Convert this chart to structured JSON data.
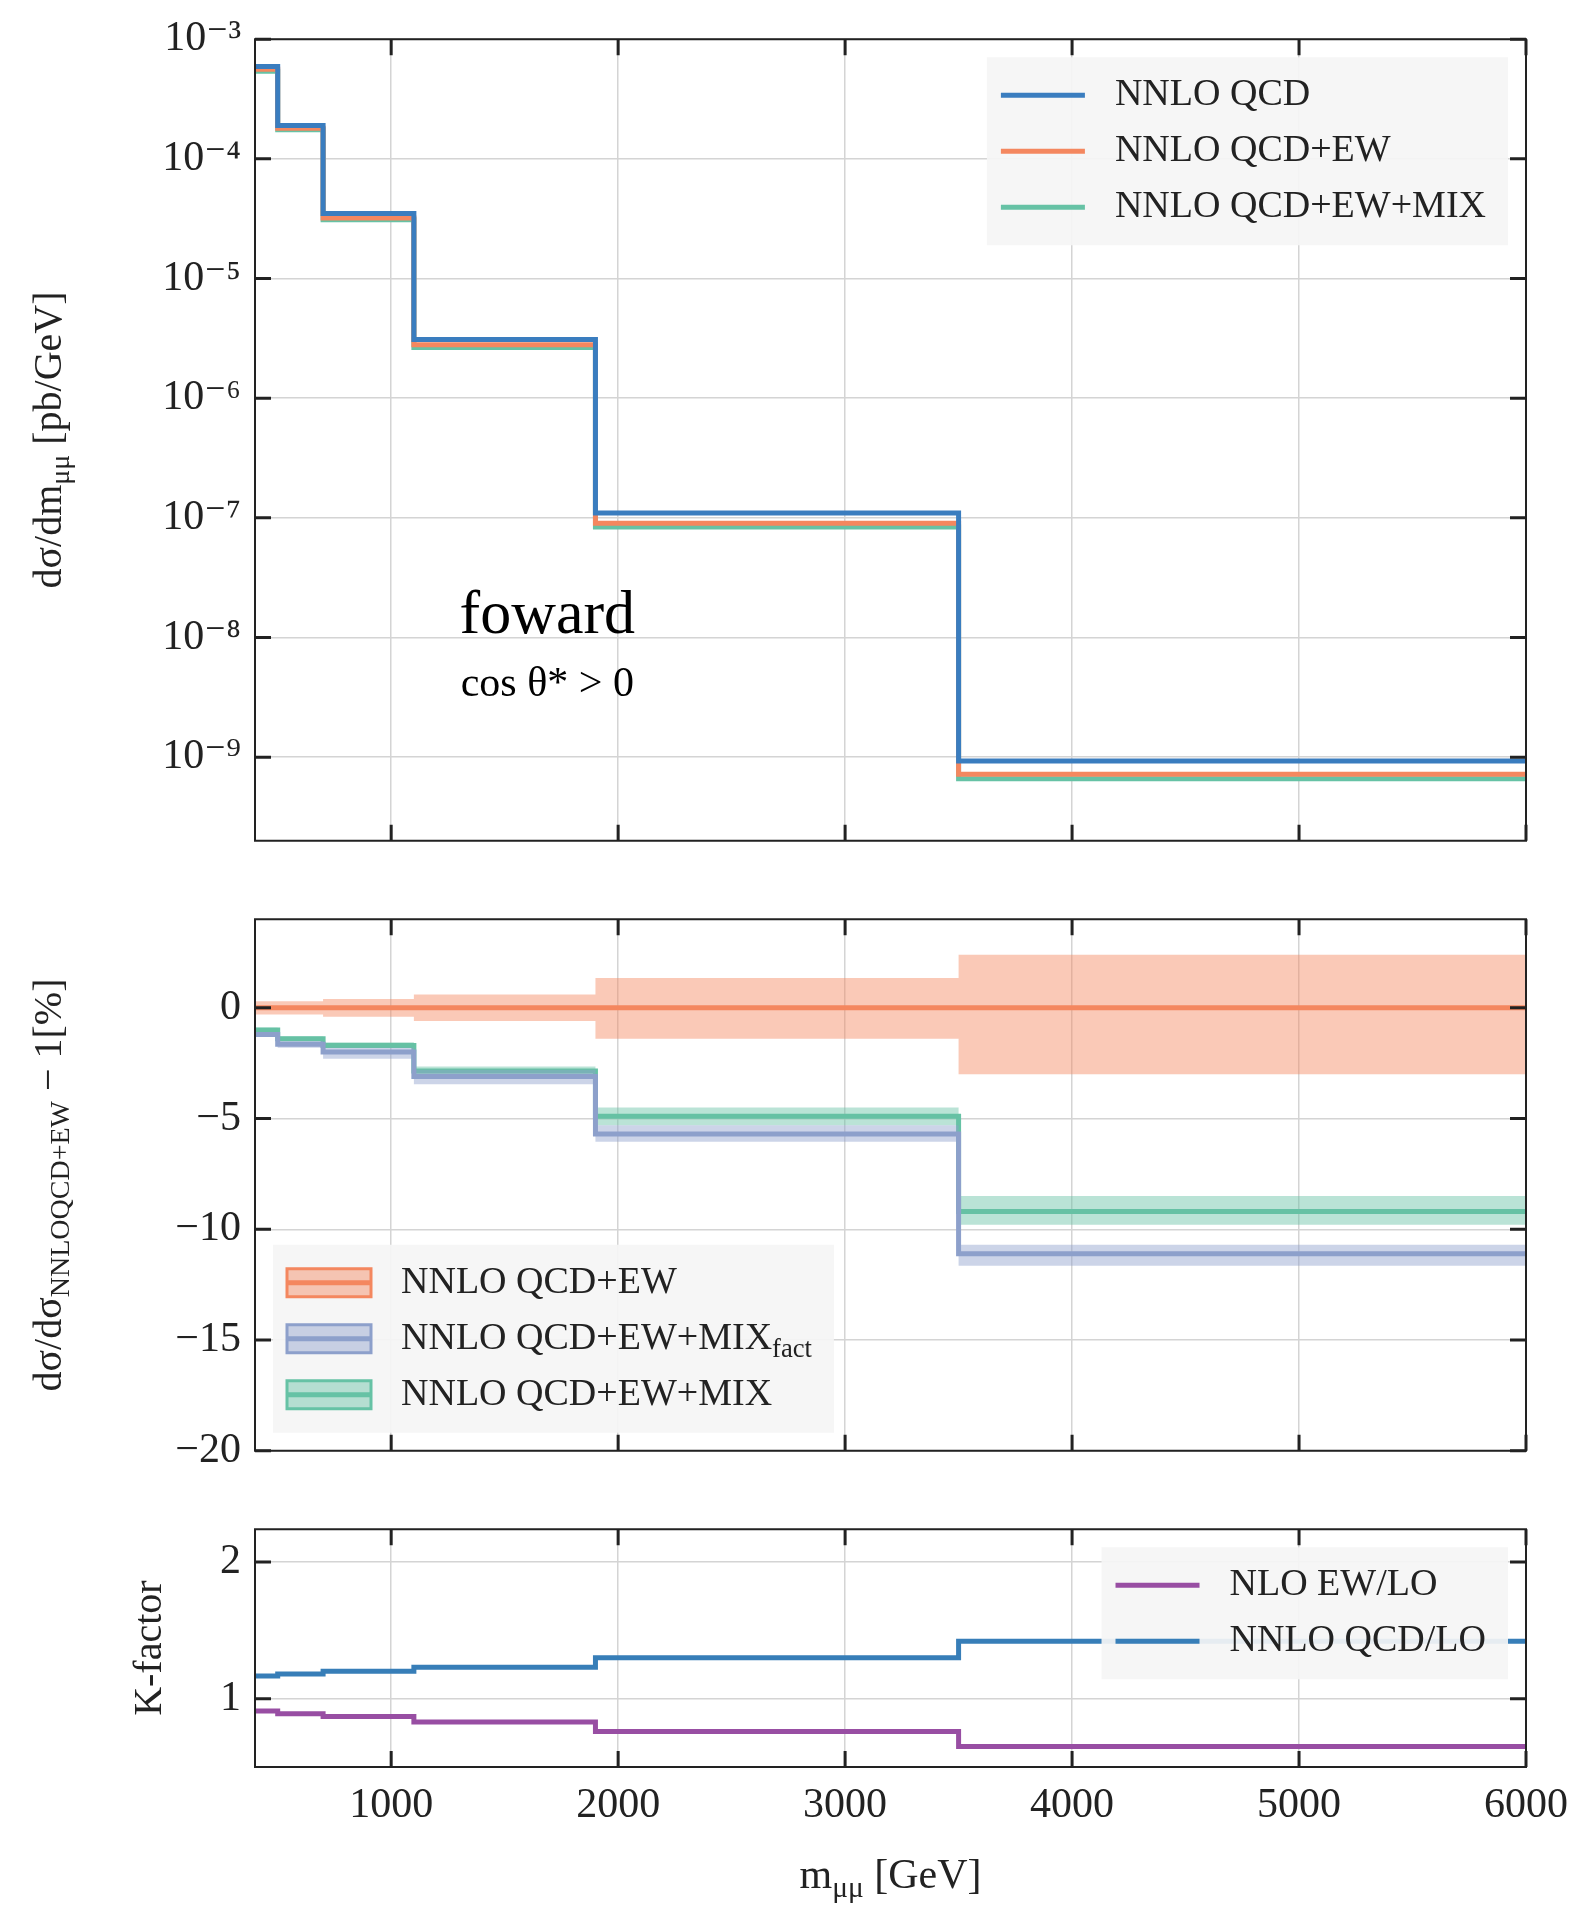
{
  "chart_data": [
    {
      "type": "step",
      "ylabel": "dσ/dm$_{μμ}$ [pb/GeV]",
      "x": [
        400,
        500,
        700,
        1100,
        1900,
        3500,
        6000
      ],
      "xlim": [
        400,
        6000
      ],
      "xticks": [
        1000,
        2000,
        3000,
        4000,
        5000,
        6000
      ],
      "ylim": [
        2e-10,
        0.001
      ],
      "yticks": [
        {
          "value": 1e-09,
          "label": "10⁻⁹"
        },
        {
          "value": 1e-08,
          "label": "10⁻⁸"
        },
        {
          "value": 1e-07,
          "label": "10⁻⁷"
        },
        {
          "value": 1e-06,
          "label": "10⁻⁶"
        },
        {
          "value": 1e-05,
          "label": "10⁻⁵"
        },
        {
          "value": 0.0001,
          "label": "10⁻⁴"
        },
        {
          "value": 0.001,
          "label": "10⁻³"
        }
      ],
      "log": "y",
      "grid": true,
      "legend": "top right",
      "tick_labels": "y",
      "annotations": [
        "foward",
        "cos θ* > 0"
      ],
      "series": [
        {
          "name": "NNLO QCD",
          "color": "#3a7dbf",
          "values": [
            0.00059,
            0.00059,
            0.00019,
            3.5e-05,
            3.1e-06,
            1.1e-07,
            9.3e-10
          ]
        },
        {
          "name": "NNLO QCD+EW",
          "color": "#f4875f",
          "values": [
            0.00056,
            0.00056,
            0.00018,
            3.2e-05,
            2.8e-06,
            9e-08,
            7.2e-10
          ]
        },
        {
          "name": "NNLO QCD+EW+MIX",
          "color": "#66c2a5",
          "values": [
            0.00054,
            0.00054,
            0.000175,
            3.1e-05,
            2.65e-06,
            8.4e-08,
            6.6e-10
          ]
        }
      ]
    },
    {
      "type": "step",
      "ylabel": "dσ/dσ$_{NNLOQCD+EW}$ − 1[%]",
      "x": [
        400,
        500,
        700,
        1100,
        1900,
        3500,
        6000
      ],
      "xlim": [
        400,
        6000
      ],
      "xticks": [
        1000,
        2000,
        3000,
        4000,
        5000,
        6000
      ],
      "ylim": [
        -20,
        4
      ],
      "yticks": [
        -20,
        -15,
        -10,
        -5,
        0
      ],
      "grid": true,
      "legend": "bottom left",
      "tick_labels": "y",
      "series": [
        {
          "name": "NNLO QCD+EW",
          "color": "#f4875f",
          "values": [
            0,
            0,
            0,
            0,
            0,
            0,
            0
          ],
          "lower": [
            -0.3,
            -0.3,
            -0.3,
            -0.4,
            -0.6,
            -1.4,
            -3.0
          ],
          "upper": [
            0.3,
            0.3,
            0.3,
            0.4,
            0.6,
            1.35,
            2.4
          ]
        },
        {
          "name": "NNLO QCD+EW+MIX$_{fact}$",
          "color": "#8da0cb",
          "values": [
            -1.2,
            -1.2,
            -1.65,
            -2.0,
            -3.1,
            -5.7,
            -11.1
          ],
          "lower": [
            -1.3,
            -1.3,
            -1.8,
            -2.3,
            -3.45,
            -6.05,
            -11.65
          ],
          "upper": [
            -1.1,
            -1.1,
            -1.5,
            -1.8,
            -2.8,
            -5.3,
            -10.7
          ]
        },
        {
          "name": "NNLO QCD+EW+MIX",
          "color": "#66c2a5",
          "values": [
            -1.0,
            -1.0,
            -1.4,
            -1.7,
            -2.85,
            -4.9,
            -9.2
          ],
          "lower": [
            -1.1,
            -1.1,
            -1.5,
            -1.8,
            -3.07,
            -5.3,
            -9.8
          ],
          "upper": [
            -0.9,
            -0.9,
            -1.3,
            -1.55,
            -2.65,
            -4.5,
            -8.5
          ]
        }
      ]
    },
    {
      "type": "step",
      "ylabel": "K-factor",
      "xlabel": "m$_{μμ}$ [GeV]",
      "x": [
        400,
        500,
        700,
        1100,
        1900,
        3500,
        6000
      ],
      "xlim": [
        400,
        6000
      ],
      "xticks": [
        1000,
        2000,
        3000,
        4000,
        5000,
        6000
      ],
      "ylim": [
        0.5,
        2.24
      ],
      "yticks": [
        1,
        2
      ],
      "grid": true,
      "legend": "top right",
      "series": [
        {
          "name": "NLO EW/LO",
          "color": "#984ea3",
          "values": [
            0.91,
            0.91,
            0.89,
            0.87,
            0.83,
            0.76,
            0.65
          ]
        },
        {
          "name": "NNLO QCD/LO",
          "color": "#377eb8",
          "values": [
            1.165,
            1.165,
            1.18,
            1.2,
            1.23,
            1.3,
            1.42
          ]
        }
      ]
    }
  ]
}
